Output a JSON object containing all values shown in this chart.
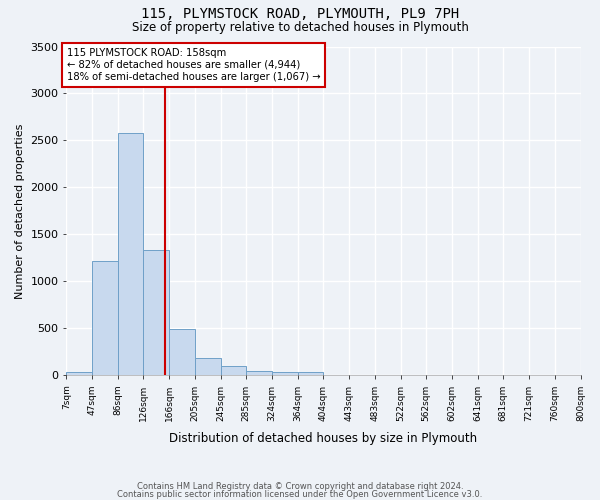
{
  "title_line1": "115, PLYMSTOCK ROAD, PLYMOUTH, PL9 7PH",
  "title_line2": "Size of property relative to detached houses in Plymouth",
  "xlabel": "Distribution of detached houses by size in Plymouth",
  "ylabel": "Number of detached properties",
  "bar_values": [
    40,
    1220,
    2580,
    1330,
    490,
    185,
    100,
    50,
    40,
    35,
    0,
    0,
    0,
    0,
    0,
    0,
    0,
    0,
    0,
    0
  ],
  "bin_labels": [
    "7sqm",
    "47sqm",
    "86sqm",
    "126sqm",
    "166sqm",
    "205sqm",
    "245sqm",
    "285sqm",
    "324sqm",
    "364sqm",
    "404sqm",
    "443sqm",
    "483sqm",
    "522sqm",
    "562sqm",
    "602sqm",
    "641sqm",
    "681sqm",
    "721sqm",
    "760sqm",
    "800sqm"
  ],
  "bar_color": "#c8d9ee",
  "bar_edge_color": "#6fa0c8",
  "background_color": "#eef2f7",
  "grid_color": "#ffffff",
  "vline_position": 3.82,
  "vline_color": "#cc0000",
  "annotation_text": "115 PLYMSTOCK ROAD: 158sqm\n← 82% of detached houses are smaller (4,944)\n18% of semi-detached houses are larger (1,067) →",
  "annotation_box_color": "#ffffff",
  "annotation_box_edge": "#cc0000",
  "ylim": [
    0,
    3500
  ],
  "yticks": [
    0,
    500,
    1000,
    1500,
    2000,
    2500,
    3000,
    3500
  ],
  "footer_line1": "Contains HM Land Registry data © Crown copyright and database right 2024.",
  "footer_line2": "Contains public sector information licensed under the Open Government Licence v3.0.",
  "num_bins": 20
}
